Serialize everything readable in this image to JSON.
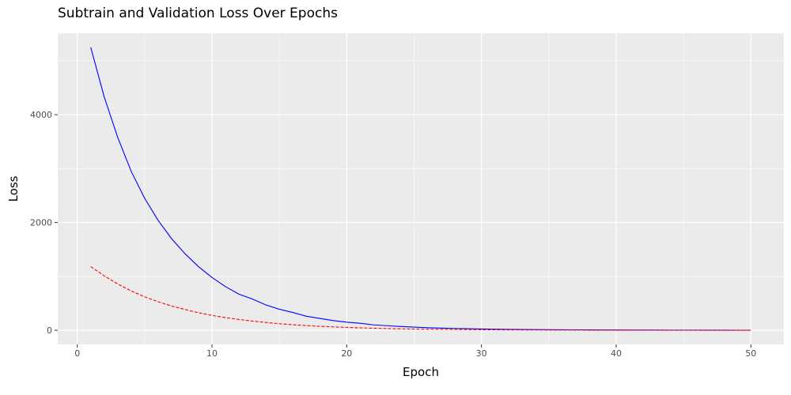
{
  "chart_data": {
    "type": "line",
    "title": "Subtrain and Validation Loss Over Epochs",
    "xlabel": "Epoch",
    "ylabel": "Loss",
    "xlim": [
      -1.45,
      52.45
    ],
    "ylim": [
      -263,
      5513
    ],
    "x_ticks": [
      0,
      10,
      20,
      30,
      40,
      50
    ],
    "y_ticks": [
      0,
      2000,
      4000
    ],
    "grid": true,
    "legend": "none",
    "panel_background": "#ebebeb",
    "series": [
      {
        "color": "#0000ff",
        "linestyle": "solid",
        "x": [
          1,
          2,
          3,
          4,
          5,
          6,
          7,
          8,
          9,
          10,
          11,
          12,
          13,
          14,
          15,
          16,
          17,
          18,
          19,
          20,
          21,
          22,
          23,
          24,
          25,
          26,
          27,
          28,
          29,
          30,
          31,
          32,
          33,
          34,
          35,
          36,
          37,
          38,
          39,
          40,
          41,
          42,
          43,
          44,
          45,
          46,
          47,
          48,
          49,
          50
        ],
        "values": [
          5250,
          4330,
          3580,
          2950,
          2450,
          2040,
          1700,
          1420,
          1180,
          980,
          810,
          670,
          580,
          470,
          390,
          330,
          260,
          220,
          180,
          150,
          130,
          100,
          85,
          70,
          58,
          48,
          40,
          34,
          29,
          24,
          20,
          17,
          15,
          13,
          11,
          9,
          8,
          7,
          6,
          5,
          4,
          3.5,
          3,
          2.5,
          2,
          1.8,
          1.5,
          1.2,
          1,
          0.8
        ]
      },
      {
        "color": "#ff0000",
        "linestyle": "dashed",
        "x": [
          1,
          2,
          3,
          4,
          5,
          6,
          7,
          8,
          9,
          10,
          11,
          12,
          13,
          14,
          15,
          16,
          17,
          18,
          19,
          20,
          21,
          22,
          23,
          24,
          25,
          26,
          27,
          28,
          29,
          30,
          31,
          32,
          33,
          34,
          35,
          36,
          37,
          38,
          39,
          40,
          41,
          42,
          43,
          44,
          45,
          46,
          47,
          48,
          49,
          50
        ],
        "values": [
          1180,
          1010,
          860,
          730,
          620,
          530,
          450,
          385,
          325,
          275,
          235,
          200,
          170,
          145,
          122,
          103,
          87,
          74,
          63,
          53,
          45,
          38,
          32,
          27,
          23,
          20,
          17,
          14,
          12,
          10,
          8.5,
          7,
          6,
          5,
          4.2,
          3.5,
          3,
          2.5,
          2.1,
          1.8,
          1.5,
          1.2,
          1,
          0.9,
          0.8,
          0.7,
          0.6,
          0.5,
          0.4,
          0.35
        ]
      }
    ]
  }
}
